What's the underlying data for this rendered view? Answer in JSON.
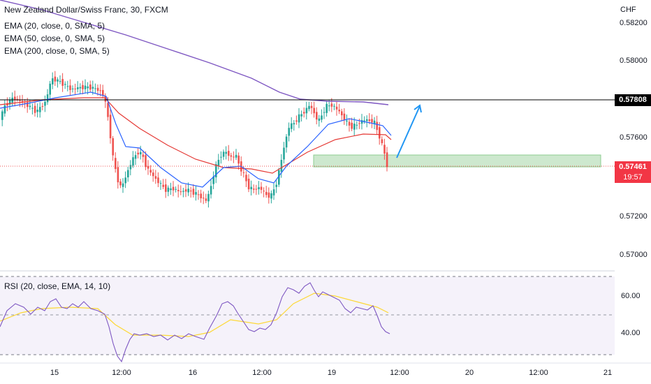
{
  "main_pane": {
    "title": "New Zealand Dollar/Swiss Franc, 30, FXCM",
    "indicators": [
      "EMA (20, close, 0, SMA, 5)",
      "EMA (50, close, 0, SMA, 5)",
      "EMA (200, close, 0, SMA, 5)"
    ],
    "currency_label": "CHF",
    "y_ticks": [
      "0.58200",
      "0.58000",
      "0.57600",
      "0.57200",
      "0.57000"
    ],
    "horizontal_level_label": "0.57808",
    "current_price_label": "0.57461",
    "countdown_label": "19:57"
  },
  "rsi_pane": {
    "title": "RSI (20, close, EMA, 14, 10)",
    "y_ticks": [
      "60.00",
      "40.00"
    ]
  },
  "x_axis": {
    "labels": [
      "15",
      "12:00",
      "16",
      "12:00",
      "19",
      "12:00",
      "20",
      "12:00",
      "21"
    ]
  },
  "colors": {
    "bull": "#26a69a",
    "bear": "#ef5350",
    "ema20": "#2962ff",
    "ema50": "#e53935",
    "ema200": "#7e57c2",
    "rsi": "#7e57c2",
    "rsi_ma": "#fdd835",
    "zone": "#c8e6c9",
    "arrow": "#2196f3",
    "level_line": "#000000"
  }
}
